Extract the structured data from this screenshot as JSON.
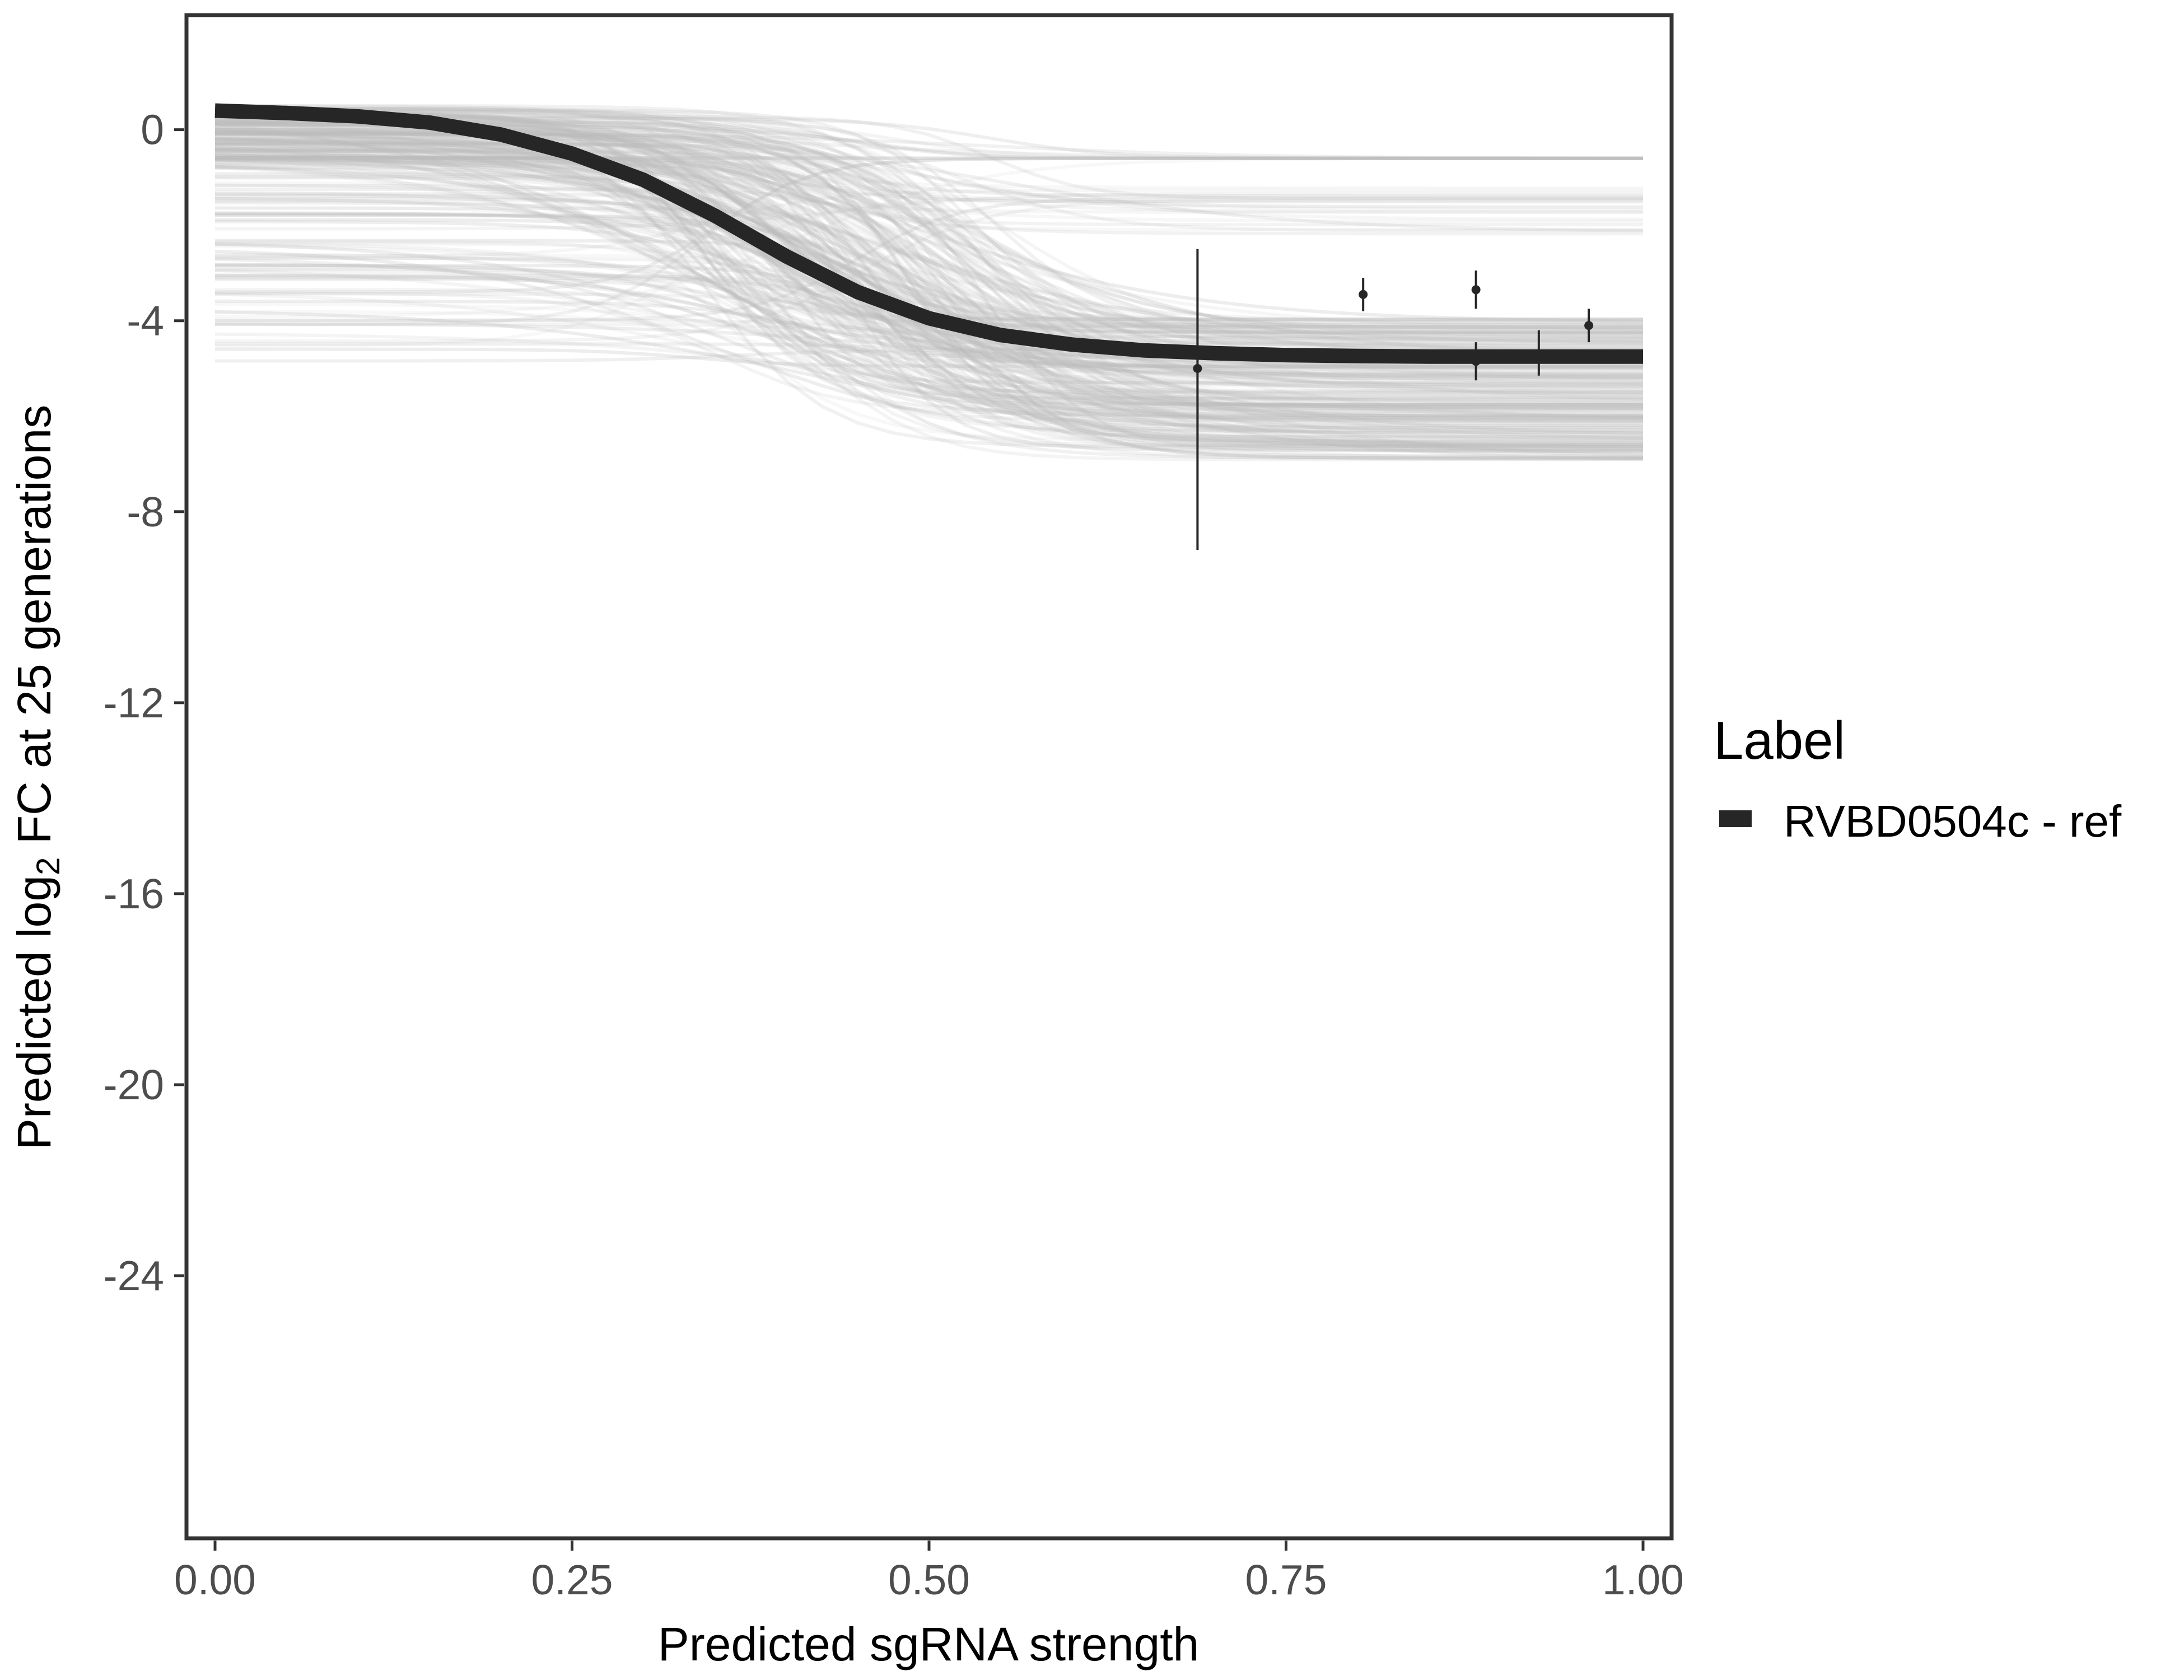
{
  "chart_data": {
    "type": "line",
    "title": "",
    "xlabel": "Predicted sgRNA strength",
    "ylabel": {
      "prefix": "Predicted  log",
      "subscript": "2",
      "suffix": " FC at 25 generations"
    },
    "xlim": [
      -0.02,
      1.02
    ],
    "ylim": [
      -29.5,
      2.4
    ],
    "x_ticks": [
      0,
      0.25,
      0.5,
      0.75,
      1
    ],
    "x_tick_labels": [
      "0.00",
      "0.25",
      "0.50",
      "0.75",
      "1.00"
    ],
    "y_ticks": [
      0,
      -4,
      -8,
      -12,
      -16,
      -20,
      -24
    ],
    "y_tick_labels": [
      "0",
      "-4",
      "-8",
      "-12",
      "-16",
      "-20",
      "-24"
    ],
    "grid": false,
    "legend": {
      "title": "Label",
      "position": "right",
      "entries": [
        {
          "label": "RVBD0504c - ref",
          "color": "#262626"
        }
      ]
    },
    "series": [
      {
        "name": "RVBD0504c - ref",
        "color": "#262626",
        "x": [
          0,
          0.05,
          0.1,
          0.15,
          0.2,
          0.25,
          0.3,
          0.35,
          0.4,
          0.45,
          0.5,
          0.55,
          0.6,
          0.65,
          0.7,
          0.75,
          0.8,
          0.85,
          0.9,
          0.95,
          1
        ],
        "y": [
          0.4,
          0.35,
          0.28,
          0.15,
          -0.1,
          -0.5,
          -1.05,
          -1.8,
          -2.65,
          -3.4,
          -3.95,
          -4.3,
          -4.5,
          -4.62,
          -4.68,
          -4.72,
          -4.74,
          -4.75,
          -4.75,
          -4.75,
          -4.75
        ]
      }
    ],
    "posterior_draws": {
      "color": "#bdbdbd",
      "count": 260
    },
    "observations": {
      "color": "#262626",
      "points": [
        {
          "x": 0.688,
          "y": -5.0,
          "ymin": -8.8,
          "ymax": -2.5
        },
        {
          "x": 0.804,
          "y": -3.45,
          "ymin": -3.8,
          "ymax": -3.1
        },
        {
          "x": 0.883,
          "y": -3.35,
          "ymin": -3.75,
          "ymax": -2.95
        },
        {
          "x": 0.883,
          "y": -4.85,
          "ymin": -5.25,
          "ymax": -4.45
        },
        {
          "x": 0.927,
          "y": -4.7,
          "ymin": -5.15,
          "ymax": -4.2
        },
        {
          "x": 0.962,
          "y": -4.1,
          "ymin": -4.45,
          "ymax": -3.75
        }
      ]
    }
  }
}
